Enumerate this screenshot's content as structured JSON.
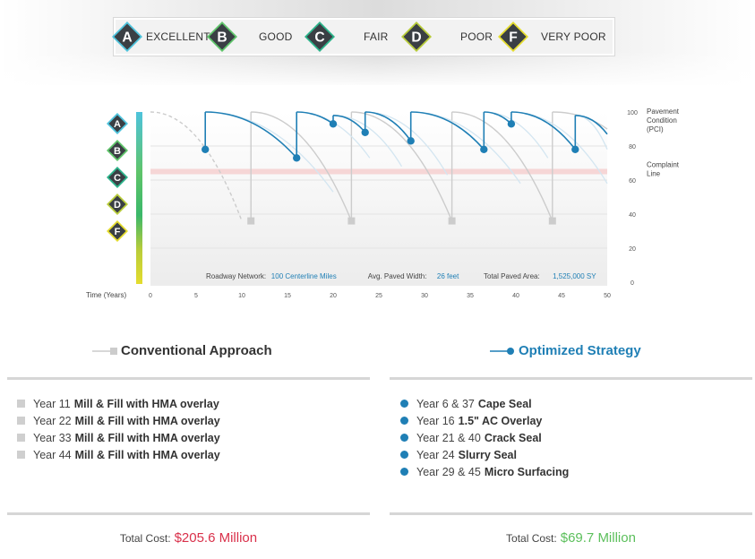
{
  "grades": [
    {
      "letter": "A",
      "label": "EXCELLENT",
      "color": "#4ec3dc",
      "selected": false
    },
    {
      "letter": "B",
      "label": "GOOD",
      "color": "#5fc46a",
      "selected": true
    },
    {
      "letter": "C",
      "label": "FAIR",
      "color": "#2bb38a",
      "selected": false
    },
    {
      "letter": "D",
      "label": "POOR",
      "color": "#b8cc3a",
      "selected": false
    },
    {
      "letter": "F",
      "label": "VERY POOR",
      "color": "#e4dc2e",
      "selected": false
    }
  ],
  "chart_data": {
    "type": "line",
    "xlabel": "Time (Years)",
    "x_ticks": [
      0,
      5,
      10,
      15,
      20,
      25,
      30,
      35,
      40,
      45,
      50
    ],
    "xlim": [
      0,
      50
    ],
    "y_ticks": [
      0,
      20,
      40,
      60,
      80,
      100
    ],
    "ylim": [
      0,
      100
    ],
    "ylabel": "Pavement Condition (PCI)",
    "complaint_line": {
      "label": "Complaint Line",
      "value": 65
    },
    "side_grades": [
      "A",
      "B",
      "C",
      "D",
      "F"
    ],
    "info": [
      {
        "label": "Roadway Network:",
        "value": "100 Centerline Miles"
      },
      {
        "label": "Avg. Paved Width:",
        "value": "26 feet"
      },
      {
        "label": "Total Paved Area:",
        "value": "1,525,000 SY"
      }
    ],
    "series": [
      {
        "name": "Conventional Approach",
        "color": "#cccccc",
        "treatments": [
          {
            "x": 11,
            "low": 36,
            "high": 100
          },
          {
            "x": 22,
            "low": 36,
            "high": 100
          },
          {
            "x": 33,
            "low": 36,
            "high": 100
          },
          {
            "x": 44,
            "low": 36,
            "high": 100
          }
        ],
        "end_value": 90
      },
      {
        "name": "Optimized Strategy",
        "color": "#1f7fb5",
        "treatments": [
          {
            "x": 6,
            "low": 78,
            "high": 100
          },
          {
            "x": 16,
            "low": 73,
            "high": 100
          },
          {
            "x": 20,
            "low": 93,
            "high": 98
          },
          {
            "x": 23.5,
            "low": 88,
            "high": 100
          },
          {
            "x": 28.5,
            "low": 83,
            "high": 100
          },
          {
            "x": 36.5,
            "low": 78,
            "high": 100
          },
          {
            "x": 39.5,
            "low": 93,
            "high": 100
          },
          {
            "x": 46.5,
            "low": 78,
            "high": 98
          }
        ],
        "end_value": 87
      }
    ]
  },
  "conventional": {
    "title": "Conventional Approach",
    "items": [
      {
        "year": "Year 11",
        "treatment": "Mill & Fill with HMA overlay"
      },
      {
        "year": "Year 22",
        "treatment": "Mill & Fill with HMA overlay"
      },
      {
        "year": "Year 33",
        "treatment": "Mill & Fill with HMA overlay"
      },
      {
        "year": "Year 44",
        "treatment": "Mill & Fill with HMA overlay"
      }
    ],
    "cost_label": "Total Cost:",
    "cost_value": "$205.6 Million"
  },
  "optimized": {
    "title": "Optimized Strategy",
    "items": [
      {
        "year": "Year 6 & 37",
        "treatment": "Cape Seal"
      },
      {
        "year": "Year 16",
        "treatment": "1.5\" AC Overlay"
      },
      {
        "year": "Year 21 & 40",
        "treatment": "Crack Seal"
      },
      {
        "year": "Year 24",
        "treatment": "Slurry Seal"
      },
      {
        "year": "Year 29 & 45",
        "treatment": "Micro Surfacing"
      }
    ],
    "cost_label": "Total Cost:",
    "cost_value": "$69.7 Million"
  }
}
